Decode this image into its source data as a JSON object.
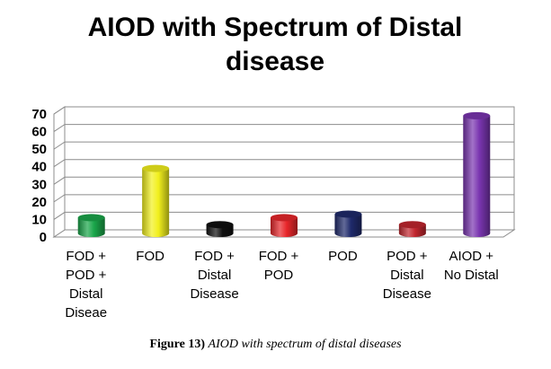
{
  "chart_data": {
    "type": "bar",
    "title_lines": [
      "AIOD  with Spectrum of Distal",
      "disease"
    ],
    "categories": [
      [
        "FOD +",
        "POD +",
        "Distal",
        "Diseae"
      ],
      [
        "FOD"
      ],
      [
        "FOD +",
        "Distal",
        "Disease"
      ],
      [
        "FOD +",
        "POD"
      ],
      [
        "POD"
      ],
      [
        "POD +",
        "Distal",
        "Disease"
      ],
      [
        "AIOD +",
        "No Distal"
      ]
    ],
    "values": [
      9,
      37,
      5,
      9,
      11,
      5,
      67
    ],
    "colors": [
      "#1aa64a",
      "#f2f01d",
      "#111111",
      "#e8262a",
      "#1f2a6b",
      "#c1262e",
      "#7a35b0"
    ],
    "yticks": [
      0,
      10,
      20,
      30,
      40,
      50,
      60,
      70
    ],
    "ylim": [
      0,
      70
    ],
    "xlabel": "",
    "ylabel": "",
    "grid": true,
    "legend": "none"
  },
  "caption": {
    "label": "Figure 13)",
    "text": "AIOD with spectrum of distal diseases"
  }
}
